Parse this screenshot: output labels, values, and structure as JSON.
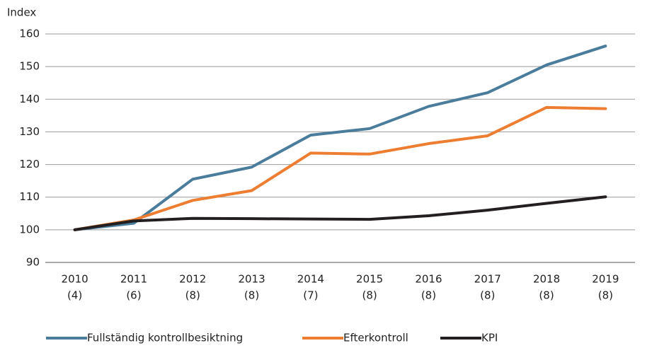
{
  "chart_data": {
    "type": "line",
    "y_label": "Index",
    "categories": [
      [
        "2010",
        "(4)"
      ],
      [
        "2011",
        "(6)"
      ],
      [
        "2012",
        "(8)"
      ],
      [
        "2013",
        "(8)"
      ],
      [
        "2014",
        "(7)"
      ],
      [
        "2015",
        "(8)"
      ],
      [
        "2016",
        "(8)"
      ],
      [
        "2017",
        "(8)"
      ],
      [
        "2018",
        "(8)"
      ],
      [
        "2019",
        "(8)"
      ]
    ],
    "series": [
      {
        "name": "Fullständig kontrollbesiktning",
        "color": "#4a7c9c",
        "values": [
          100,
          102,
          115.5,
          119.2,
          129,
          131,
          137.8,
          142,
          150.5,
          156.3
        ]
      },
      {
        "name": "Efterkontroll",
        "color": "#ed7d31",
        "values": [
          100,
          103,
          109,
          112,
          123.5,
          123.2,
          126.4,
          128.8,
          137.5,
          137.1
        ]
      },
      {
        "name": "KPI",
        "color": "#231f20",
        "values": [
          100,
          102.7,
          103.5,
          103.4,
          103.3,
          103.2,
          104.3,
          106,
          108.1,
          110.1
        ]
      }
    ],
    "ylim": [
      90,
      160
    ],
    "yticks": [
      90,
      100,
      110,
      120,
      130,
      140,
      150,
      160
    ],
    "grid": true,
    "legend": "bottom"
  }
}
